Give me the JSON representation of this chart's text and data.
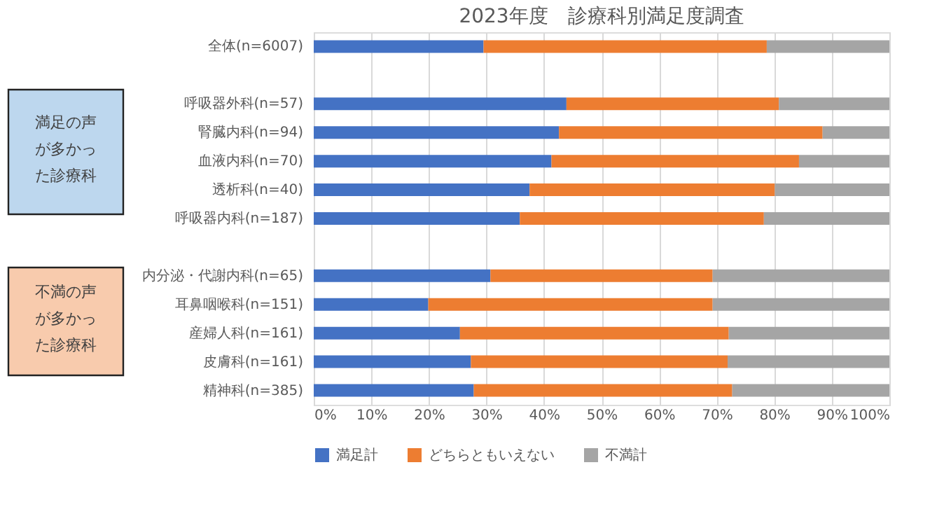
{
  "chart_data": {
    "type": "bar",
    "orientation": "horizontal",
    "stacked": true,
    "title": "2023年度　診療科別満足度調査",
    "categories": [
      "全体(n=6007)",
      null,
      "呼吸器外科(n=57)",
      "腎臓内科(n=94)",
      "血液内科(n=70)",
      "透析科(n=40)",
      "呼吸器内科(n=187)",
      null,
      "内分泌・代謝内科(n=65)",
      "耳鼻咽喉科(n=151)",
      "産婦人科(n=161)",
      "皮膚科(n=161)",
      "精神科(n=385)"
    ],
    "series": [
      {
        "name": "満足計",
        "color": "#4472c4",
        "values": [
          29.5,
          null,
          43.9,
          42.6,
          41.3,
          37.5,
          35.8,
          null,
          30.7,
          19.9,
          25.4,
          27.3,
          27.8
        ]
      },
      {
        "name": "どちらともいえない",
        "color": "#ed7d31",
        "values": [
          49.2,
          null,
          36.9,
          45.8,
          43.0,
          42.6,
          42.4,
          null,
          38.6,
          49.4,
          46.7,
          44.6,
          44.9
        ]
      },
      {
        "name": "不満計",
        "color": "#a5a5a5",
        "values": [
          21.3,
          null,
          19.2,
          11.6,
          15.7,
          19.9,
          21.8,
          null,
          30.7,
          30.7,
          27.9,
          28.1,
          27.3
        ]
      }
    ],
    "xlim": [
      0,
      100
    ],
    "xticks": [
      {
        "value": 0,
        "label": "0%"
      },
      {
        "value": 10,
        "label": "10%"
      },
      {
        "value": 20,
        "label": "20%"
      },
      {
        "value": 30,
        "label": "30%"
      },
      {
        "value": 40,
        "label": "40%"
      },
      {
        "value": 50,
        "label": "50%"
      },
      {
        "value": 60,
        "label": "60%"
      },
      {
        "value": 70,
        "label": "70%"
      },
      {
        "value": 80,
        "label": "80%"
      },
      {
        "value": 90,
        "label": "90%"
      },
      {
        "value": 100,
        "label": "100%"
      }
    ],
    "grid": "x",
    "legend": "bottom",
    "annotations": [
      "満足の声が多かった診療科",
      "不満の声が多かった診療科"
    ]
  }
}
